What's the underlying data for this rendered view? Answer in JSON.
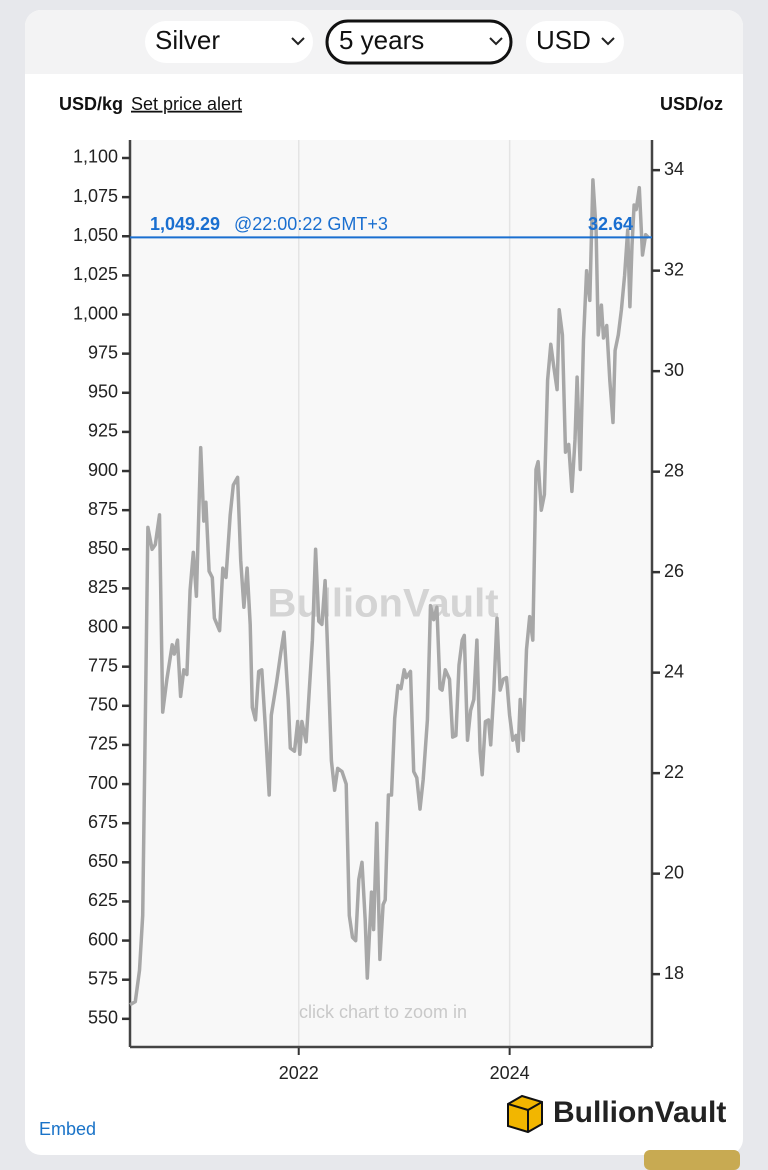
{
  "controls": {
    "metal": "Silver",
    "period": "5 years",
    "currency": "USD"
  },
  "chart_data": {
    "type": "line",
    "y_label": "USD/kg",
    "y2_label": "USD/oz",
    "alert_link": "Set price alert",
    "watermark": "BullionVault",
    "hint": "click chart to zoom in",
    "color": "#a7a7a7",
    "grid": true,
    "current": {
      "value": 1049.29,
      "label": "1,049.29",
      "time": "@22:00:22 GMT+3",
      "value_oz": 32.64
    },
    "xlim": [
      2020.4,
      2025.35
    ],
    "xticks": [
      2022,
      2024
    ],
    "ylim": [
      532,
      1111.5
    ],
    "yticks": [
      550,
      575,
      600,
      625,
      650,
      675,
      700,
      725,
      750,
      775,
      800,
      825,
      850,
      875,
      900,
      925,
      950,
      975,
      {
        "value": 1000,
        "label": "1,000"
      },
      {
        "value": 1025,
        "label": "1,025"
      },
      {
        "value": 1050,
        "label": "1,050"
      },
      {
        "value": 1075,
        "label": "1,075"
      },
      {
        "value": 1100,
        "label": "1,100"
      }
    ],
    "y2lim": [
      16.55,
      34.6
    ],
    "y2ticks": [
      18,
      20,
      22,
      24,
      26,
      28,
      30,
      32,
      34
    ],
    "x": [
      2020.4,
      2020.45,
      2020.49,
      2020.52,
      2020.57,
      2020.61,
      2020.64,
      2020.68,
      2020.71,
      2020.75,
      2020.8,
      2020.82,
      2020.85,
      2020.88,
      2020.91,
      2020.94,
      2020.97,
      2021.0,
      2021.03,
      2021.07,
      2021.1,
      2021.12,
      2021.15,
      2021.18,
      2021.2,
      2021.25,
      2021.28,
      2021.31,
      2021.35,
      2021.38,
      2021.42,
      2021.45,
      2021.48,
      2021.51,
      2021.54,
      2021.56,
      2021.59,
      2021.62,
      2021.65,
      2021.68,
      2021.72,
      2021.74,
      2021.79,
      2021.83,
      2021.86,
      2021.9,
      2021.92,
      2021.96,
      2021.99,
      2022.01,
      2022.03,
      2022.07,
      2022.1,
      2022.13,
      2022.16,
      2022.19,
      2022.22,
      2022.25,
      2022.27,
      2022.31,
      2022.34,
      2022.37,
      2022.41,
      2022.45,
      2022.48,
      2022.51,
      2022.54,
      2022.57,
      2022.6,
      2022.63,
      2022.65,
      2022.69,
      2022.71,
      2022.74,
      2022.77,
      2022.8,
      2022.82,
      2022.85,
      2022.88,
      2022.91,
      2022.94,
      2022.97,
      2023.0,
      2023.02,
      2023.06,
      2023.09,
      2023.12,
      2023.15,
      2023.18,
      2023.22,
      2023.25,
      2023.28,
      2023.31,
      2023.34,
      2023.36,
      2023.39,
      2023.43,
      2023.46,
      2023.49,
      2023.52,
      2023.55,
      2023.57,
      2023.6,
      2023.63,
      2023.66,
      2023.69,
      2023.72,
      2023.74,
      2023.77,
      2023.8,
      2023.82,
      2023.85,
      2023.88,
      2023.91,
      2023.94,
      2023.97,
      2024.0,
      2024.03,
      2024.06,
      2024.08,
      2024.1,
      2024.13,
      2024.16,
      2024.19,
      2024.22,
      2024.25,
      2024.27,
      2024.3,
      2024.33,
      2024.36,
      2024.39,
      2024.42,
      2024.45,
      2024.47,
      2024.5,
      2024.53,
      2024.56,
      2024.59,
      2024.62,
      2024.64,
      2024.67,
      2024.7,
      2024.73,
      2024.76,
      2024.79,
      2024.82,
      2024.84,
      2024.87,
      2024.89,
      2024.92,
      2024.95,
      2024.98,
      2025.0,
      2025.03,
      2025.06,
      2025.09,
      2025.12,
      2025.14,
      2025.16,
      2025.18,
      2025.2,
      2025.23,
      2025.26,
      2025.29,
      2025.32
    ],
    "values": [
      559,
      561,
      581,
      616,
      864,
      850,
      853,
      872,
      746,
      767,
      789,
      783,
      792,
      756,
      773,
      770,
      824,
      848,
      820,
      915,
      868,
      880,
      836,
      832,
      806,
      798,
      838,
      832,
      872,
      891,
      896,
      843,
      813,
      838,
      802,
      749,
      741,
      772,
      773,
      740,
      693,
      744,
      765,
      784,
      797,
      754,
      723,
      721,
      740,
      719,
      740,
      727,
      760,
      792,
      850,
      804,
      802,
      830,
      793,
      715,
      696,
      710,
      708,
      700,
      616,
      602,
      600,
      639,
      650,
      613,
      576,
      631,
      607,
      675,
      588,
      623,
      626,
      693,
      693,
      742,
      763,
      761,
      773,
      768,
      772,
      708,
      704,
      684,
      703,
      741,
      814,
      805,
      813,
      761,
      760,
      773,
      767,
      730,
      731,
      776,
      792,
      795,
      728,
      747,
      754,
      792,
      721,
      706,
      740,
      741,
      725,
      759,
      806,
      760,
      767,
      768,
      744,
      728,
      731,
      721,
      754,
      728,
      786,
      807,
      792,
      901,
      906,
      875,
      885,
      958,
      981,
      966,
      952,
      1003,
      987,
      912,
      917,
      887,
      920,
      960,
      901,
      984,
      1028,
      1009,
      1086,
      1054,
      987,
      1006,
      985,
      993,
      958,
      931,
      977,
      987,
      1003,
      1025,
      1054,
      1005,
      1044,
      1070,
      1067,
      1081,
      1038,
      1051,
      1049
    ]
  },
  "footer": {
    "embed": "Embed",
    "logo": "BullionVault"
  }
}
